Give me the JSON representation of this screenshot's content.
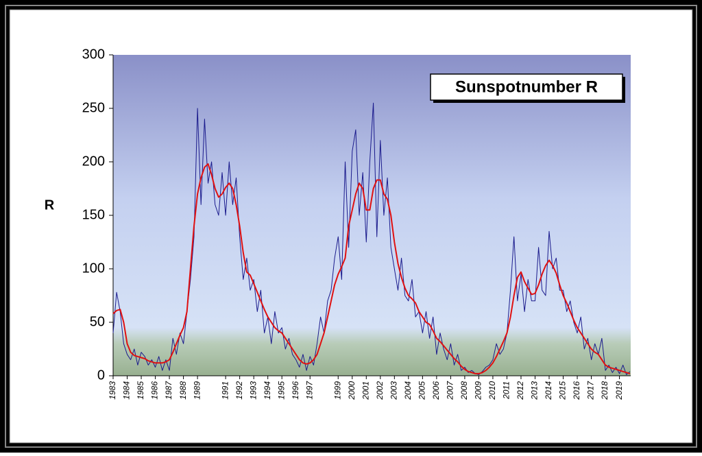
{
  "chart_data": {
    "type": "line",
    "title": "Sunspotnumber R",
    "y_label": "R",
    "x": [
      1983,
      1983.25,
      1983.5,
      1983.75,
      1984,
      1984.25,
      1984.5,
      1984.75,
      1985,
      1985.25,
      1985.5,
      1985.75,
      1986,
      1986.25,
      1986.5,
      1986.75,
      1987,
      1987.25,
      1987.5,
      1987.75,
      1988,
      1988.25,
      1988.5,
      1988.75,
      1989,
      1989.25,
      1989.5,
      1989.75,
      1990,
      1990.25,
      1990.5,
      1990.75,
      1991,
      1991.25,
      1991.5,
      1991.75,
      1992,
      1992.25,
      1992.5,
      1992.75,
      1993,
      1993.25,
      1993.5,
      1993.75,
      1994,
      1994.25,
      1994.5,
      1994.75,
      1995,
      1995.25,
      1995.5,
      1995.75,
      1996,
      1996.25,
      1996.5,
      1996.75,
      1997,
      1997.25,
      1997.5,
      1997.75,
      1998,
      1998.25,
      1998.5,
      1998.75,
      1999,
      1999.25,
      1999.5,
      1999.75,
      2000,
      2000.25,
      2000.5,
      2000.75,
      2001,
      2001.25,
      2001.5,
      2001.75,
      2002,
      2002.25,
      2002.5,
      2002.75,
      2003,
      2003.25,
      2003.5,
      2003.75,
      2004,
      2004.25,
      2004.5,
      2004.75,
      2005,
      2005.25,
      2005.5,
      2005.75,
      2006,
      2006.25,
      2006.5,
      2006.75,
      2007,
      2007.25,
      2007.5,
      2007.75,
      2008,
      2008.25,
      2008.5,
      2008.75,
      2009,
      2009.25,
      2009.5,
      2009.75,
      2010,
      2010.25,
      2010.5,
      2010.75,
      2011,
      2011.25,
      2011.5,
      2011.75,
      2012,
      2012.25,
      2012.5,
      2012.75,
      2013,
      2013.25,
      2013.5,
      2013.75,
      2014,
      2014.25,
      2014.5,
      2014.75,
      2015,
      2015.25,
      2015.5,
      2015.75,
      2016,
      2016.25,
      2016.5,
      2016.75,
      2017,
      2017.25,
      2017.5,
      2017.75,
      2018,
      2018.25,
      2018.5,
      2018.75,
      2019,
      2019.25,
      2019.5,
      2019.75
    ],
    "series": [
      {
        "color": "#1a1a8c",
        "values": [
          40,
          78,
          60,
          30,
          20,
          15,
          25,
          10,
          22,
          18,
          10,
          15,
          8,
          18,
          5,
          15,
          5,
          35,
          20,
          40,
          30,
          60,
          90,
          130,
          250,
          160,
          240,
          180,
          200,
          160,
          150,
          190,
          150,
          200,
          160,
          185,
          130,
          90,
          110,
          80,
          90,
          60,
          80,
          40,
          55,
          30,
          60,
          40,
          45,
          25,
          35,
          20,
          15,
          8,
          20,
          5,
          18,
          10,
          30,
          55,
          40,
          70,
          80,
          110,
          130,
          90,
          200,
          120,
          210,
          230,
          150,
          190,
          125,
          200,
          255,
          130,
          220,
          150,
          185,
          120,
          100,
          80,
          110,
          75,
          70,
          90,
          55,
          60,
          40,
          60,
          35,
          55,
          20,
          40,
          25,
          15,
          30,
          10,
          20,
          5,
          8,
          3,
          5,
          2,
          1,
          4,
          8,
          10,
          15,
          30,
          20,
          25,
          40,
          80,
          130,
          70,
          95,
          60,
          90,
          70,
          70,
          120,
          80,
          75,
          135,
          100,
          110,
          80,
          80,
          60,
          70,
          50,
          40,
          55,
          25,
          35,
          15,
          30,
          20,
          35,
          5,
          10,
          3,
          8,
          2,
          10,
          1,
          4
        ]
      },
      {
        "color": "#e01010",
        "values": [
          58,
          61,
          62,
          50,
          30,
          22,
          19,
          18,
          17,
          16,
          14,
          13,
          12,
          12,
          12,
          13,
          15,
          22,
          30,
          38,
          45,
          60,
          100,
          140,
          170,
          185,
          195,
          198,
          188,
          175,
          167,
          170,
          176,
          180,
          175,
          160,
          140,
          115,
          97,
          94,
          86,
          78,
          70,
          62,
          55,
          50,
          45,
          42,
          40,
          35,
          30,
          25,
          20,
          15,
          12,
          11,
          12,
          15,
          20,
          30,
          40,
          55,
          70,
          85,
          95,
          102,
          110,
          140,
          155,
          170,
          180,
          175,
          155,
          155,
          175,
          183,
          183,
          170,
          165,
          150,
          125,
          105,
          92,
          82,
          75,
          72,
          68,
          60,
          55,
          50,
          48,
          42,
          35,
          32,
          28,
          24,
          20,
          16,
          13,
          9,
          6,
          4,
          3,
          2,
          2,
          3,
          5,
          8,
          12,
          18,
          25,
          32,
          40,
          55,
          75,
          92,
          97,
          88,
          82,
          76,
          77,
          85,
          95,
          103,
          108,
          103,
          96,
          85,
          75,
          68,
          60,
          52,
          45,
          40,
          35,
          30,
          25,
          22,
          20,
          15,
          10,
          8,
          7,
          6,
          5,
          4,
          3,
          2
        ]
      }
    ],
    "xlim": [
      1983,
      2019.8
    ],
    "xticks": [
      1983,
      1984,
      1985,
      1986,
      1987,
      1988,
      1989,
      1991,
      1992,
      1993,
      1994,
      1995,
      1996,
      1997,
      1999,
      2000,
      2001,
      2002,
      2003,
      2004,
      2005,
      2006,
      2007,
      2008,
      2009,
      2010,
      2011,
      2012,
      2013,
      2014,
      2015,
      2016,
      2017,
      2018,
      2019
    ],
    "ylim": [
      0,
      300
    ],
    "yticks": [
      0,
      50,
      100,
      150,
      200,
      250,
      300
    ]
  }
}
